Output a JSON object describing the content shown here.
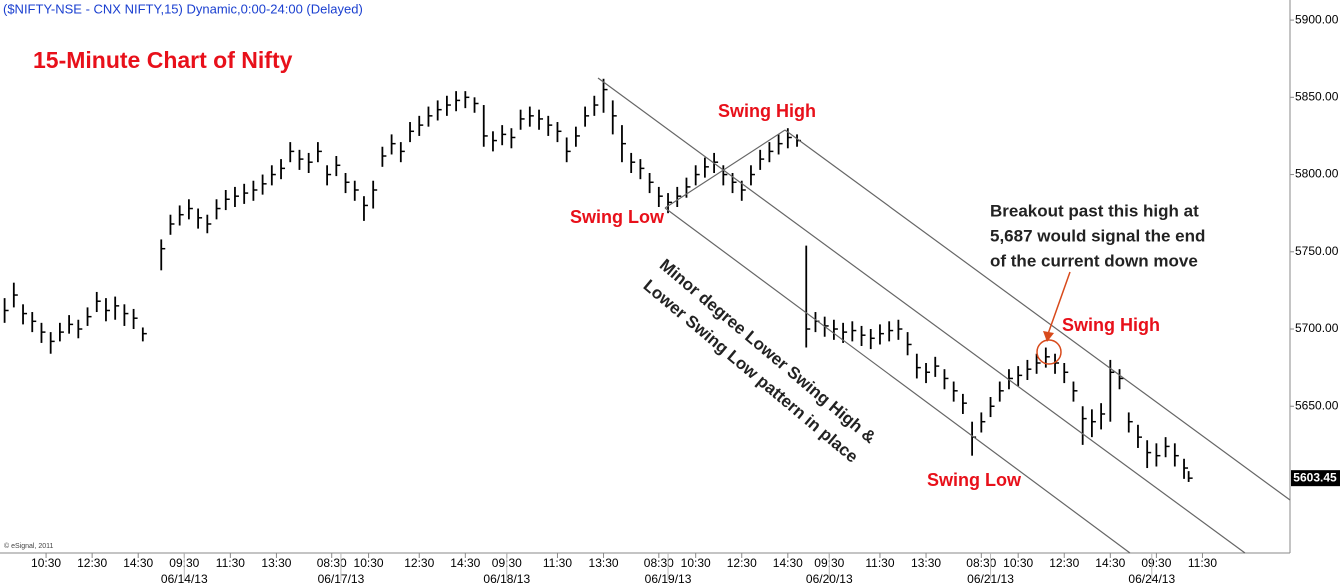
{
  "chart_data": {
    "type": "ohlc",
    "header": "($NIFTY-NSE - CNX NIFTY,15) Dynamic,0:00-24:00 (Delayed)",
    "title": "15-Minute Chart of Nifty",
    "watermark": "© eSignal, 2011",
    "color": "#000000",
    "x": [
      1,
      3,
      5,
      7,
      9,
      11,
      13,
      15,
      17,
      19,
      21,
      23,
      25,
      27,
      29,
      31,
      35,
      37,
      39,
      41,
      43,
      45,
      47,
      49,
      51,
      53,
      55,
      57,
      59,
      61,
      63,
      65,
      67,
      69,
      71,
      73,
      75,
      77,
      79,
      81,
      83,
      85,
      87,
      89,
      91,
      93,
      95,
      97,
      99,
      101,
      103,
      105,
      107,
      109,
      111,
      113,
      115,
      117,
      119,
      121,
      123,
      125,
      127,
      129,
      131,
      133,
      135,
      137,
      139,
      141,
      143,
      145,
      147,
      149,
      151,
      153,
      155,
      157,
      159,
      161,
      163,
      165,
      167,
      169,
      171,
      173,
      175,
      177,
      179,
      181,
      183,
      185,
      187,
      189,
      191,
      193,
      195,
      197,
      199,
      201,
      203,
      205,
      207,
      209,
      211,
      213,
      215,
      217,
      219,
      221,
      223,
      225,
      227,
      229,
      231,
      233,
      235,
      237,
      239,
      241,
      243,
      245,
      247,
      249,
      251,
      253,
      255,
      257,
      258
    ],
    "high": [
      5720,
      5730,
      5716,
      5711,
      5704,
      5698,
      5704,
      5709,
      5706,
      5714,
      5724,
      5720,
      5721,
      5716,
      5713,
      5701,
      5758,
      5774,
      5780,
      5784,
      5778,
      5774,
      5784,
      5790,
      5792,
      5794,
      5796,
      5800,
      5806,
      5810,
      5821,
      5816,
      5814,
      5821,
      5806,
      5812,
      5801,
      5796,
      5786,
      5796,
      5818,
      5826,
      5821,
      5834,
      5838,
      5844,
      5848,
      5851,
      5854,
      5854,
      5850,
      5845,
      5828,
      5832,
      5830,
      5842,
      5844,
      5842,
      5838,
      5834,
      5824,
      5831,
      5844,
      5851,
      5862,
      5848,
      5832,
      5814,
      5810,
      5801,
      5792,
      5788,
      5792,
      5798,
      5806,
      5811,
      5814,
      5806,
      5801,
      5796,
      5806,
      5816,
      5821,
      5826,
      5830,
      5826,
      5754,
      5711,
      5708,
      5706,
      5704,
      5705,
      5702,
      5700,
      5703,
      5705,
      5706,
      5698,
      5684,
      5678,
      5682,
      5674,
      5666,
      5658,
      5640,
      5646,
      5656,
      5666,
      5674,
      5676,
      5680,
      5684,
      5688,
      5684,
      5678,
      5666,
      5650,
      5648,
      5652,
      5680,
      5674,
      5646,
      5638,
      5628,
      5626,
      5630,
      5626,
      5616,
      5608
    ],
    "low": [
      5704,
      5714,
      5703,
      5698,
      5691,
      5684,
      5692,
      5697,
      5694,
      5702,
      5711,
      5705,
      5706,
      5702,
      5700,
      5692,
      5738,
      5761,
      5767,
      5771,
      5765,
      5762,
      5771,
      5777,
      5779,
      5781,
      5783,
      5787,
      5793,
      5797,
      5808,
      5803,
      5801,
      5808,
      5793,
      5799,
      5788,
      5783,
      5770,
      5778,
      5805,
      5813,
      5808,
      5821,
      5825,
      5831,
      5835,
      5838,
      5841,
      5843,
      5840,
      5818,
      5815,
      5819,
      5817,
      5829,
      5831,
      5829,
      5825,
      5821,
      5808,
      5818,
      5831,
      5838,
      5840,
      5826,
      5808,
      5801,
      5797,
      5788,
      5779,
      5775,
      5779,
      5785,
      5793,
      5798,
      5801,
      5793,
      5788,
      5783,
      5793,
      5803,
      5808,
      5813,
      5817,
      5818,
      5688,
      5698,
      5695,
      5693,
      5691,
      5692,
      5689,
      5687,
      5690,
      5692,
      5693,
      5683,
      5668,
      5665,
      5669,
      5661,
      5653,
      5645,
      5618,
      5633,
      5643,
      5653,
      5661,
      5663,
      5667,
      5671,
      5675,
      5671,
      5665,
      5653,
      5625,
      5630,
      5635,
      5640,
      5661,
      5633,
      5623,
      5610,
      5611,
      5617,
      5611,
      5603,
      5601
    ],
    "close": [
      5712,
      5722,
      5710,
      5705,
      5698,
      5692,
      5698,
      5703,
      5700,
      5708,
      5718,
      5712,
      5715,
      5710,
      5707,
      5697,
      5752,
      5768,
      5774,
      5778,
      5772,
      5768,
      5778,
      5784,
      5786,
      5788,
      5790,
      5794,
      5800,
      5804,
      5815,
      5810,
      5808,
      5815,
      5800,
      5806,
      5795,
      5790,
      5780,
      5790,
      5812,
      5820,
      5815,
      5828,
      5832,
      5838,
      5842,
      5845,
      5848,
      5850,
      5846,
      5825,
      5822,
      5826,
      5824,
      5836,
      5838,
      5836,
      5832,
      5828,
      5815,
      5825,
      5838,
      5845,
      5855,
      5838,
      5820,
      5808,
      5804,
      5795,
      5786,
      5782,
      5786,
      5792,
      5800,
      5805,
      5808,
      5800,
      5795,
      5790,
      5800,
      5810,
      5815,
      5820,
      5824,
      5822,
      5700,
      5705,
      5702,
      5700,
      5698,
      5699,
      5696,
      5694,
      5697,
      5699,
      5700,
      5690,
      5675,
      5672,
      5676,
      5668,
      5660,
      5652,
      5630,
      5640,
      5650,
      5660,
      5668,
      5670,
      5674,
      5678,
      5682,
      5678,
      5672,
      5660,
      5642,
      5640,
      5645,
      5672,
      5668,
      5640,
      5630,
      5620,
      5618,
      5624,
      5618,
      5610,
      5603.45
    ],
    "xlim": [
      0,
      280
    ],
    "ylim": [
      5555,
      5913
    ],
    "yticks": [
      {
        "value": 5650,
        "label": "5650.00"
      },
      {
        "value": 5700,
        "label": "5700.00"
      },
      {
        "value": 5750,
        "label": "5750.00"
      },
      {
        "value": 5800,
        "label": "5800.00"
      },
      {
        "value": 5850,
        "label": "5850.00"
      },
      {
        "value": 5900,
        "label": "5900.00"
      }
    ],
    "xticks": [
      {
        "value": 10,
        "label": "10:30"
      },
      {
        "value": 20,
        "label": "12:30"
      },
      {
        "value": 30,
        "label": "14:30"
      },
      {
        "value": 40,
        "label": "09:30"
      },
      {
        "value": 50,
        "label": "11:30"
      },
      {
        "value": 60,
        "label": "13:30"
      },
      {
        "value": 72,
        "label": "08:30"
      },
      {
        "value": 80,
        "label": "10:30"
      },
      {
        "value": 91,
        "label": "12:30"
      },
      {
        "value": 101,
        "label": "14:30"
      },
      {
        "value": 110,
        "label": "09:30"
      },
      {
        "value": 121,
        "label": "11:30"
      },
      {
        "value": 131,
        "label": "13:30"
      },
      {
        "value": 143,
        "label": "08:30"
      },
      {
        "value": 151,
        "label": "10:30"
      },
      {
        "value": 161,
        "label": "12:30"
      },
      {
        "value": 171,
        "label": "14:30"
      },
      {
        "value": 180,
        "label": "09:30"
      },
      {
        "value": 191,
        "label": "11:30"
      },
      {
        "value": 201,
        "label": "13:30"
      },
      {
        "value": 213,
        "label": "08:30"
      },
      {
        "value": 221,
        "label": "10:30"
      },
      {
        "value": 231,
        "label": "12:30"
      },
      {
        "value": 241,
        "label": "14:30"
      },
      {
        "value": 251,
        "label": "09:30"
      },
      {
        "value": 261,
        "label": "11:30"
      }
    ],
    "date_ticks": [
      {
        "value": 40,
        "label": "06/14/13"
      },
      {
        "value": 74,
        "label": "06/17/13"
      },
      {
        "value": 110,
        "label": "06/18/13"
      },
      {
        "value": 145,
        "label": "06/19/13"
      },
      {
        "value": 180,
        "label": "06/20/13"
      },
      {
        "value": 215,
        "label": "06/21/13"
      },
      {
        "value": 250,
        "label": "06/24/13"
      }
    ],
    "annotations": {
      "swing_high_1": "Swing High",
      "swing_low_1": "Swing Low",
      "swing_high_2": "Swing High",
      "swing_low_2": "Swing Low",
      "pattern": [
        "Minor degree Lower Swing High &",
        "Lower Swing Low pattern in place"
      ],
      "breakout": [
        "Breakout past this high at",
        "5,687 would signal the end",
        "of the current down move"
      ]
    }
  }
}
